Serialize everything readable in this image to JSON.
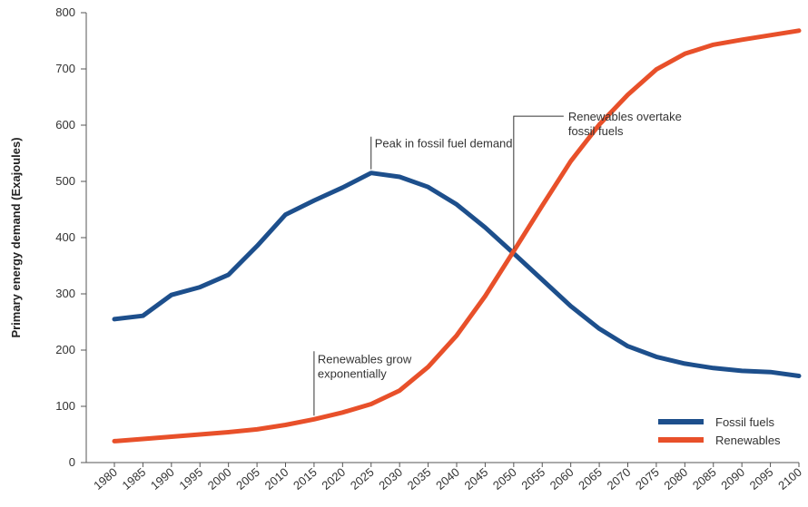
{
  "chart_data": {
    "type": "line",
    "title": "",
    "xlabel": "",
    "ylabel": "Primary energy demand (Exajoules)",
    "x": [
      1980,
      1985,
      1990,
      1995,
      2000,
      2005,
      2010,
      2015,
      2020,
      2025,
      2030,
      2035,
      2040,
      2045,
      2050,
      2055,
      2060,
      2065,
      2070,
      2075,
      2080,
      2085,
      2090,
      2095,
      2100
    ],
    "x_tick_labels": [
      "1980",
      "1985",
      "1990",
      "1995",
      "2000",
      "2005",
      "2010",
      "2015",
      "2020",
      "2025",
      "2030",
      "2035",
      "2040",
      "2045",
      "2050",
      "2055",
      "2060",
      "2065",
      "2070",
      "2075",
      "2080",
      "2085",
      "2090",
      "2095",
      "2100"
    ],
    "ylim": [
      0,
      800
    ],
    "y_ticks": [
      0,
      100,
      200,
      300,
      400,
      500,
      600,
      700,
      800
    ],
    "y_tick_labels": [
      "0",
      "100",
      "200",
      "300",
      "400",
      "500",
      "600",
      "700",
      "800"
    ],
    "grid": false,
    "legend_position": "bottom-right",
    "series": [
      {
        "name": "Fossil fuels",
        "color": "#1d4f8c",
        "values": [
          255,
          261,
          298,
          312,
          334,
          385,
          441,
          466,
          489,
          515,
          508,
          490,
          459,
          418,
          372,
          325,
          278,
          238,
          207,
          188,
          176,
          168,
          163,
          161,
          154
        ]
      },
      {
        "name": "Renewables",
        "color": "#e8502a",
        "values": [
          38,
          42,
          46,
          50,
          54,
          59,
          67,
          77,
          89,
          104,
          128,
          170,
          226,
          296,
          376,
          457,
          536,
          601,
          654,
          699,
          727,
          743,
          752,
          760,
          768
        ]
      }
    ],
    "annotations": [
      {
        "x": 2025,
        "y": 515,
        "text_lines": [
          "Peak in fossil fuel demand"
        ]
      },
      {
        "x": 2050,
        "y": 374,
        "text_lines": [
          "Renewables overtake",
          "fossil fuels"
        ]
      },
      {
        "x": 2015,
        "y": 77,
        "text_lines": [
          "Renewables grow",
          "exponentially"
        ]
      }
    ]
  }
}
